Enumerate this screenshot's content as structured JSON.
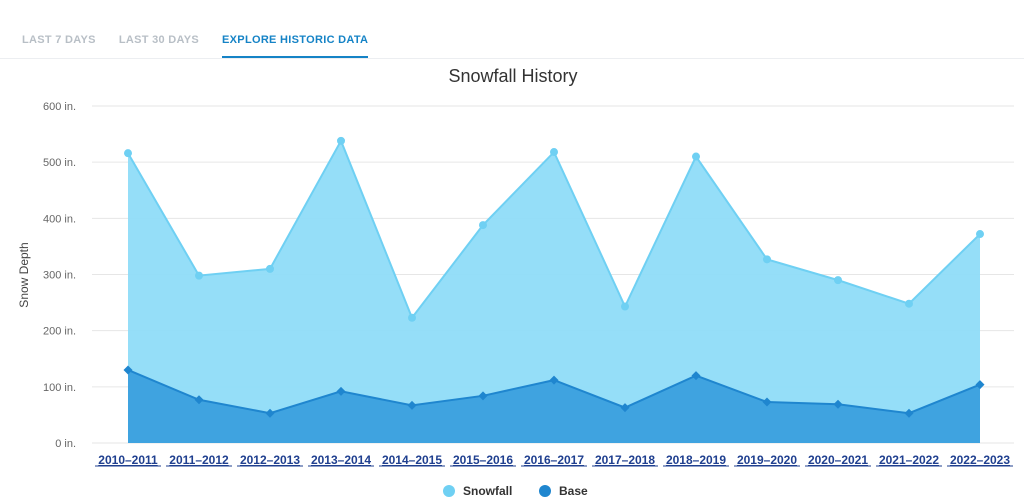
{
  "tabs": [
    {
      "label": "LAST 7 DAYS",
      "active": false
    },
    {
      "label": "LAST 30 DAYS",
      "active": false
    },
    {
      "label": "EXPLORE HISTORIC DATA",
      "active": true
    }
  ],
  "colors": {
    "snowfall_fill": "#8fdcf8",
    "snowfall_line": "#6fd0f3",
    "base_fill": "#3fa3e0",
    "base_line": "#1f86cf",
    "tab_active": "#1583c6"
  },
  "chart_data": {
    "type": "area",
    "title": "Snowfall History",
    "xlabel": "",
    "ylabel": "Snow Depth",
    "ylim": [
      0,
      600
    ],
    "yticks": [
      0,
      100,
      200,
      300,
      400,
      500,
      600
    ],
    "ytick_labels": [
      "0 in.",
      "100 in.",
      "200 in.",
      "300 in.",
      "400 in.",
      "500 in.",
      "600 in."
    ],
    "grid": true,
    "legend_position": "bottom-center",
    "categories": [
      "2010–2011",
      "2011–2012",
      "2012–2013",
      "2013–2014",
      "2014–2015",
      "2015–2016",
      "2016–2017",
      "2017–2018",
      "2018–2019",
      "2019–2020",
      "2020–2021",
      "2021–2022",
      "2022–2023"
    ],
    "series": [
      {
        "name": "Snowfall",
        "marker": "circle",
        "values": [
          516,
          298,
          310,
          538,
          223,
          388,
          518,
          243,
          510,
          327,
          290,
          248,
          372
        ]
      },
      {
        "name": "Base",
        "marker": "diamond",
        "values": [
          130,
          77,
          53,
          92,
          67,
          84,
          112,
          63,
          120,
          73,
          69,
          53,
          104
        ]
      }
    ]
  }
}
